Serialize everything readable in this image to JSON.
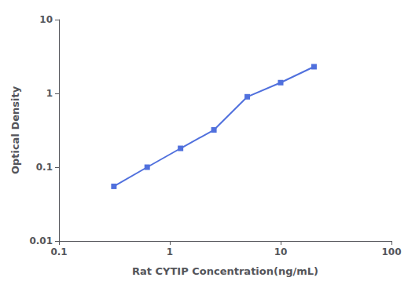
{
  "chart_data": {
    "type": "line",
    "x": [
      0.313,
      0.625,
      1.25,
      2.5,
      5.0,
      10.0,
      20.0
    ],
    "values": [
      0.055,
      0.1,
      0.18,
      0.32,
      0.9,
      1.4,
      2.3
    ],
    "xlabel": "Rat CYTIP Concentration(ng/mL)",
    "ylabel": "Optical Density",
    "xlim": [
      0.1,
      100
    ],
    "ylim": [
      0.01,
      10
    ],
    "xticks": [
      0.1,
      1,
      10,
      100
    ],
    "yticks": [
      0.01,
      0.1,
      1,
      10
    ],
    "log": true,
    "marker": "square",
    "grid": false
  }
}
